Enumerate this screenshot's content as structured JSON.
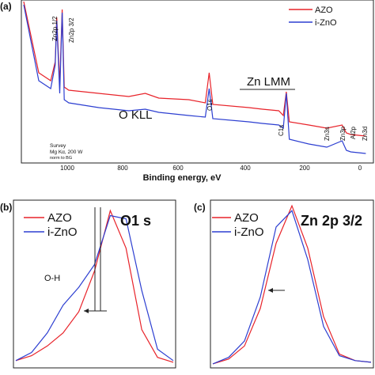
{
  "colors": {
    "azo": "#e8232a",
    "izno": "#2d3fd1",
    "axis": "#222222"
  },
  "panels": {
    "a": {
      "label": "(a)",
      "xlabel": "Binding energy, eV",
      "legend": [
        "AZO",
        "i-ZnO"
      ],
      "annotations": {
        "zn2p12": "Zn2p 1/2",
        "zn2p32": "Zn2p 3/2",
        "okll": "O KLL",
        "o1s": "O1s",
        "znlmm": "Zn LMM",
        "c1s": "C1s",
        "zn3s": "Zn3s",
        "zn3p": "Zn3p",
        "al2p": "Al2p",
        "zn3d": "Zn3d"
      },
      "survey_note": [
        "Survey",
        "Mg Kα, 200 W",
        "norm to BG"
      ],
      "xticks": [
        "1000",
        "800",
        "600",
        "400",
        "200",
        "0"
      ]
    },
    "b": {
      "label": "(b)",
      "title": "O1 s",
      "legend": [
        "AZO",
        "i-ZnO"
      ],
      "annotation": "O-H"
    },
    "c": {
      "label": "(c)",
      "title": "Zn 2p 3/2",
      "legend": [
        "AZO",
        "i-ZnO"
      ]
    }
  },
  "chart_data": [
    {
      "type": "line",
      "title": "",
      "xlabel": "Binding energy, eV",
      "ylabel": "",
      "xlim": [
        1150,
        -10
      ],
      "xticks": [
        1000,
        800,
        600,
        400,
        200,
        0
      ],
      "series": [
        {
          "name": "AZO",
          "x": [
            1150,
            1100,
            1060,
            1045,
            1040,
            1030,
            1022,
            1015,
            1000,
            900,
            800,
            745,
            700,
            600,
            545,
            532,
            520,
            400,
            355,
            300,
            285,
            275,
            265,
            200,
            140,
            89,
            75,
            60,
            10
          ],
          "y": [
            1.0,
            0.55,
            0.5,
            0.62,
            0.9,
            0.48,
            0.95,
            0.46,
            0.44,
            0.42,
            0.4,
            0.42,
            0.39,
            0.38,
            0.36,
            0.55,
            0.35,
            0.33,
            0.32,
            0.31,
            0.28,
            0.43,
            0.24,
            0.22,
            0.2,
            0.22,
            0.17,
            0.16,
            0.15
          ]
        },
        {
          "name": "i-ZnO",
          "x": [
            1150,
            1100,
            1060,
            1045,
            1040,
            1030,
            1022,
            1015,
            1000,
            900,
            800,
            745,
            700,
            600,
            545,
            532,
            520,
            400,
            355,
            300,
            285,
            275,
            265,
            200,
            140,
            89,
            75,
            60,
            10
          ],
          "y": [
            0.98,
            0.5,
            0.45,
            0.6,
            0.88,
            0.42,
            0.93,
            0.38,
            0.36,
            0.33,
            0.31,
            0.32,
            0.3,
            0.28,
            0.27,
            0.45,
            0.26,
            0.24,
            0.23,
            0.22,
            0.2,
            0.42,
            0.13,
            0.1,
            0.08,
            0.12,
            0.06,
            0.05,
            0.04
          ]
        }
      ]
    },
    {
      "type": "line",
      "title": "O1 s",
      "series": [
        {
          "name": "AZO",
          "x": [
            0,
            0.1,
            0.2,
            0.3,
            0.4,
            0.5,
            0.6,
            0.7,
            0.8,
            0.9,
            1.0
          ],
          "y": [
            0.03,
            0.06,
            0.12,
            0.2,
            0.33,
            0.58,
            0.95,
            0.72,
            0.22,
            0.05,
            0.02
          ]
        },
        {
          "name": "i-ZnO",
          "x": [
            0,
            0.1,
            0.2,
            0.3,
            0.4,
            0.5,
            0.6,
            0.7,
            0.8,
            0.9,
            1.0
          ],
          "y": [
            0.03,
            0.08,
            0.2,
            0.37,
            0.48,
            0.62,
            0.92,
            0.9,
            0.46,
            0.1,
            0.03
          ]
        }
      ]
    },
    {
      "type": "line",
      "title": "Zn 2p 3/2",
      "series": [
        {
          "name": "AZO",
          "x": [
            0,
            0.1,
            0.2,
            0.3,
            0.4,
            0.5,
            0.6,
            0.7,
            0.8,
            0.9,
            1.0
          ],
          "y": [
            0.01,
            0.04,
            0.12,
            0.35,
            0.75,
            0.98,
            0.72,
            0.3,
            0.07,
            0.03,
            0.02
          ]
        },
        {
          "name": "i-ZnO",
          "x": [
            0,
            0.1,
            0.2,
            0.3,
            0.4,
            0.5,
            0.6,
            0.7,
            0.8,
            0.9,
            1.0
          ],
          "y": [
            0.01,
            0.05,
            0.15,
            0.42,
            0.85,
            0.95,
            0.65,
            0.24,
            0.06,
            0.03,
            0.02
          ]
        }
      ]
    }
  ]
}
